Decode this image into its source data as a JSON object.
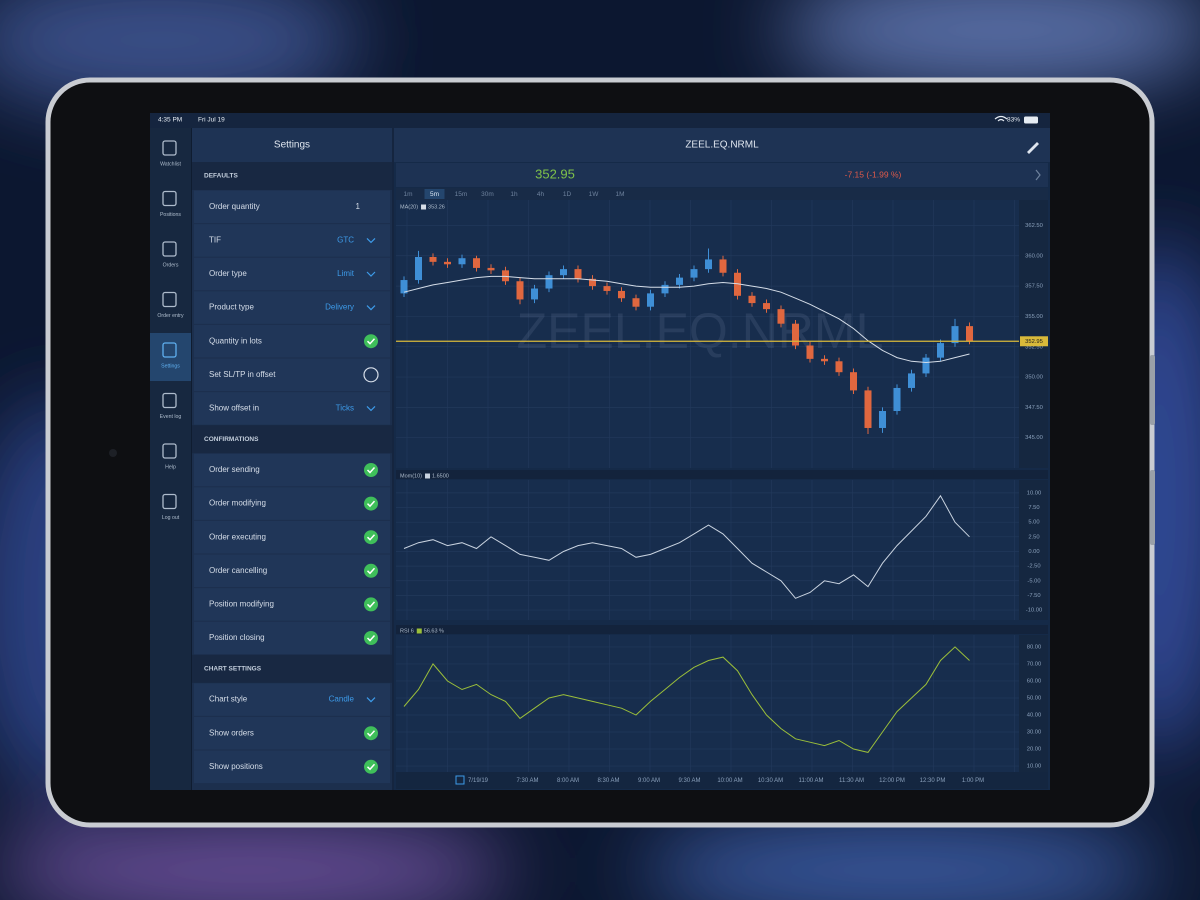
{
  "status_bar": {
    "time": "4:35 PM",
    "date": "Fri Jul 19",
    "battery": "83%"
  },
  "sidebar": {
    "items": [
      "Watchlist",
      "Positions",
      "Orders",
      "Order entry",
      "Settings",
      "Event log",
      "Help",
      "Log out"
    ],
    "active": 4
  },
  "settings": {
    "title": "Settings",
    "sections": [
      {
        "title": "DEFAULTS",
        "rows": [
          {
            "label": "Order quantity",
            "value": "1"
          },
          {
            "label": "TIF",
            "value": "GTC",
            "dropdown": true
          },
          {
            "label": "Order type",
            "value": "Limit",
            "dropdown": true
          },
          {
            "label": "Product type",
            "value": "Delivery",
            "dropdown": true
          },
          {
            "label": "Quantity in lots",
            "checked": true
          },
          {
            "label": "Set SL/TP in offset",
            "checked": false
          },
          {
            "label": "Show offset in",
            "value": "Ticks",
            "dropdown": true
          }
        ]
      },
      {
        "title": "CONFIRMATIONS",
        "rows": [
          {
            "label": "Order sending",
            "checked": true
          },
          {
            "label": "Order modifying",
            "checked": true
          },
          {
            "label": "Order executing",
            "checked": true
          },
          {
            "label": "Order cancelling",
            "checked": true
          },
          {
            "label": "Position modifying",
            "checked": true
          },
          {
            "label": "Position closing",
            "checked": true
          }
        ]
      },
      {
        "title": "CHART SETTINGS",
        "rows": [
          {
            "label": "Chart style",
            "value": "Candle",
            "dropdown": true
          },
          {
            "label": "Show orders",
            "checked": true
          },
          {
            "label": "Show positions",
            "checked": true
          }
        ]
      }
    ]
  },
  "chart": {
    "symbol": "ZEEL.EQ.NRML",
    "last_price": "352.95",
    "change": "-7.15 (-1.99 %)",
    "timeframes": [
      "1m",
      "5m",
      "15m",
      "30m",
      "1h",
      "4h",
      "1D",
      "1W",
      "1M"
    ],
    "active_timeframe": 1,
    "price_panel": {
      "legend": {
        "name": "MA(20)",
        "value": "353.26"
      },
      "ylim": [
        342.5,
        364.6
      ],
      "yticks": [
        {
          "value": 362.5,
          "label": "362.50"
        },
        {
          "value": 360,
          "label": "360.00"
        },
        {
          "value": 357.5,
          "label": "357.50"
        },
        {
          "value": 355,
          "label": "355.00"
        },
        {
          "value": 352.5,
          "label": "352.50"
        },
        {
          "value": 350,
          "label": "350.00"
        },
        {
          "value": 347.5,
          "label": "347.50"
        },
        {
          "value": 345,
          "label": "345.00"
        }
      ],
      "up_color": "#3f8fd6",
      "down_color": "#e0673f",
      "ma_color": "#d5dde8",
      "price_line_color": "#d8b93a",
      "candles": [
        [
          356.9,
          358.3,
          356.6,
          358.0
        ],
        [
          358.0,
          360.4,
          357.7,
          359.9
        ],
        [
          359.9,
          360.2,
          359.2,
          359.5
        ],
        [
          359.5,
          359.8,
          359.0,
          359.3
        ],
        [
          359.3,
          360.1,
          359.0,
          359.8
        ],
        [
          359.8,
          360.0,
          358.7,
          359.0
        ],
        [
          359.0,
          359.3,
          358.5,
          358.8
        ],
        [
          358.8,
          359.1,
          357.6,
          357.9
        ],
        [
          357.9,
          358.2,
          356.0,
          356.4
        ],
        [
          356.4,
          357.6,
          356.1,
          357.3
        ],
        [
          357.3,
          358.7,
          357.0,
          358.4
        ],
        [
          358.4,
          359.2,
          358.1,
          358.9
        ],
        [
          358.9,
          359.2,
          357.8,
          358.1
        ],
        [
          358.1,
          358.4,
          357.2,
          357.5
        ],
        [
          357.5,
          357.8,
          356.8,
          357.1
        ],
        [
          357.1,
          357.4,
          356.2,
          356.5
        ],
        [
          356.5,
          356.8,
          355.5,
          355.8
        ],
        [
          355.8,
          357.2,
          355.5,
          356.9
        ],
        [
          356.9,
          357.9,
          356.6,
          357.6
        ],
        [
          357.6,
          358.5,
          357.3,
          358.2
        ],
        [
          358.2,
          359.2,
          357.9,
          358.9
        ],
        [
          358.9,
          360.6,
          358.6,
          359.7
        ],
        [
          359.7,
          360.0,
          358.3,
          358.6
        ],
        [
          358.6,
          358.9,
          356.4,
          356.7
        ],
        [
          356.7,
          357.0,
          355.8,
          356.1
        ],
        [
          356.1,
          356.4,
          355.3,
          355.6
        ],
        [
          355.6,
          355.9,
          354.1,
          354.4
        ],
        [
          354.4,
          354.7,
          352.3,
          352.6
        ],
        [
          352.6,
          352.9,
          351.2,
          351.5
        ],
        [
          351.5,
          351.8,
          351.0,
          351.3
        ],
        [
          351.3,
          351.6,
          350.1,
          350.4
        ],
        [
          350.4,
          350.7,
          348.6,
          348.9
        ],
        [
          348.9,
          349.2,
          345.3,
          345.8
        ],
        [
          345.8,
          347.5,
          345.4,
          347.2
        ],
        [
          347.2,
          349.4,
          346.9,
          349.1
        ],
        [
          349.1,
          350.6,
          348.8,
          350.3
        ],
        [
          350.3,
          351.9,
          350.0,
          351.6
        ],
        [
          351.6,
          353.1,
          351.3,
          352.8
        ],
        [
          352.8,
          354.8,
          352.5,
          354.2
        ],
        [
          354.2,
          354.5,
          352.7,
          352.95
        ]
      ],
      "ma": [
        357.0,
        357.3,
        357.6,
        357.8,
        358.0,
        358.2,
        358.3,
        358.3,
        358.2,
        358.1,
        358.1,
        358.1,
        358.1,
        358.0,
        357.9,
        357.7,
        357.5,
        357.4,
        357.4,
        357.4,
        357.5,
        357.7,
        357.8,
        357.7,
        357.5,
        357.3,
        357.0,
        356.5,
        356.0,
        355.4,
        354.8,
        354.0,
        353.0,
        352.2,
        351.6,
        351.3,
        351.2,
        351.3,
        351.6,
        351.9
      ]
    },
    "momentum_panel": {
      "legend": {
        "name": "Mom(10)",
        "value": "1.6500"
      },
      "ylim": [
        -11.7,
        12.2
      ],
      "yticks": [
        {
          "value": 10,
          "label": "10.00"
        },
        {
          "value": 7.5,
          "label": "7.50"
        },
        {
          "value": 5,
          "label": "5.00"
        },
        {
          "value": 2.5,
          "label": "2.50"
        },
        {
          "value": 0,
          "label": "0.00"
        },
        {
          "value": -2.5,
          "label": "-2.50"
        },
        {
          "value": -5,
          "label": "-5.00"
        },
        {
          "value": -7.5,
          "label": "-7.50"
        },
        {
          "value": -10,
          "label": "-10.00"
        }
      ],
      "color": "#c9d3e0",
      "values": [
        0.5,
        1.5,
        2.0,
        1.0,
        1.5,
        0.5,
        2.5,
        1.0,
        -0.5,
        -1.0,
        -1.5,
        0.0,
        1.0,
        1.5,
        1.0,
        0.5,
        -1.0,
        -0.5,
        0.5,
        1.5,
        3.0,
        4.5,
        3.0,
        0.5,
        -2.0,
        -3.5,
        -5.0,
        -8.0,
        -7.0,
        -5.0,
        -5.5,
        -4.0,
        -6.0,
        -2.0,
        1.0,
        3.5,
        6.0,
        9.5,
        5.0,
        2.5
      ]
    },
    "rsi_panel": {
      "legend": {
        "name": "RSI 6",
        "value": "56.63 %"
      },
      "ylim": [
        6.5,
        87
      ],
      "yticks": [
        {
          "value": 80,
          "label": "80.00"
        },
        {
          "value": 70,
          "label": "70.00"
        },
        {
          "value": 60,
          "label": "60.00"
        },
        {
          "value": 50,
          "label": "50.00"
        },
        {
          "value": 40,
          "label": "40.00"
        },
        {
          "value": 30,
          "label": "30.00"
        },
        {
          "value": 20,
          "label": "20.00"
        },
        {
          "value": 10,
          "label": "10.00"
        }
      ],
      "color": "#9bbf3a",
      "values": [
        45,
        55,
        70,
        60,
        55,
        58,
        52,
        48,
        38,
        44,
        50,
        52,
        50,
        48,
        46,
        44,
        40,
        48,
        55,
        62,
        68,
        72,
        74,
        66,
        52,
        40,
        32,
        26,
        24,
        22,
        25,
        20,
        18,
        30,
        42,
        50,
        58,
        72,
        80,
        72
      ]
    },
    "time_labels": [
      "7/19/19",
      "7:30 AM",
      "8:00 AM",
      "8:30 AM",
      "9:00 AM",
      "9:30 AM",
      "10:00 AM",
      "10:30 AM",
      "11:00 AM",
      "11:30 AM",
      "12:00 PM",
      "12:30 PM",
      "1:00 PM"
    ]
  }
}
